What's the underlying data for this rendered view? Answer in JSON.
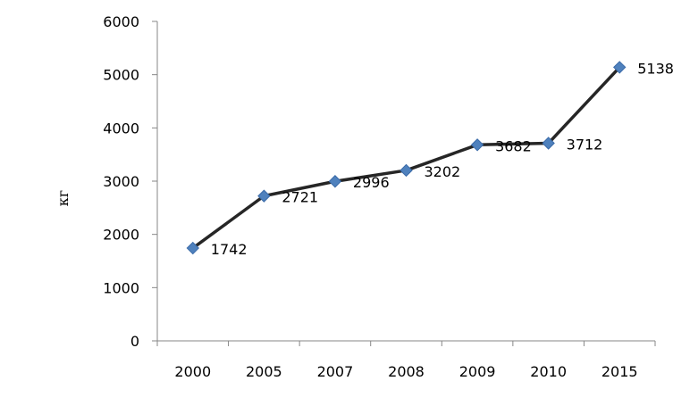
{
  "chart_data": {
    "type": "line",
    "title": "",
    "xlabel": "",
    "ylabel": "кг",
    "categories": [
      "2000",
      "2005",
      "2007",
      "2008",
      "2009",
      "2010",
      "2015"
    ],
    "series": [
      {
        "values": [
          1742,
          2721,
          2996,
          3202,
          3682,
          3712,
          5138
        ]
      }
    ],
    "data_labels": [
      "1742",
      "2721",
      "2996",
      "3202",
      "3682",
      "3712",
      "5138"
    ],
    "ylim": [
      0,
      6000
    ],
    "y_ticks": [
      "0",
      "1000",
      "2000",
      "3000",
      "4000",
      "5000",
      "6000"
    ],
    "grid": false,
    "legend": "none",
    "colors": {
      "line": "#262626",
      "marker": "#4f81bd",
      "marker_stroke": "#3a6aa8",
      "axis": "#878787"
    },
    "marker_shape": "diamond-icon"
  }
}
